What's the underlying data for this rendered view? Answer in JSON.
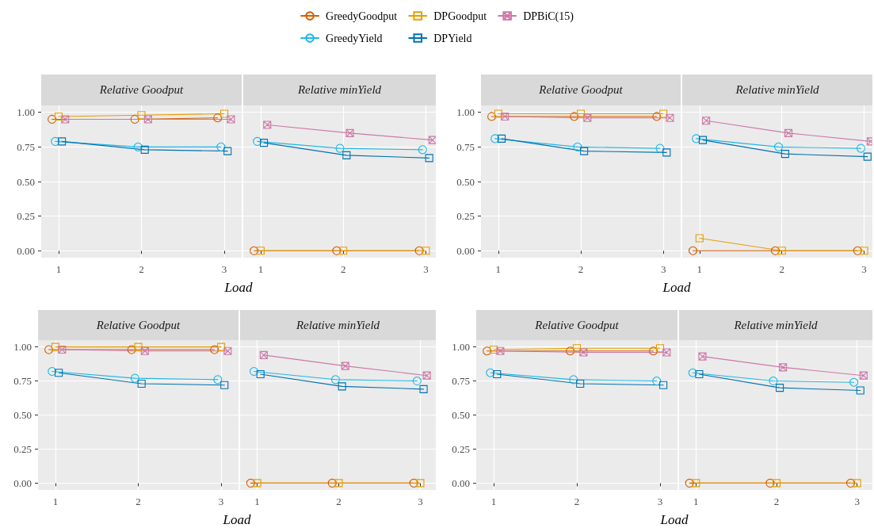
{
  "chart_data": [
    {
      "type": "line",
      "title": "Relative Goodput",
      "xlabel": "Load",
      "legend": "top",
      "grid": true,
      "xlim": [
        0.79,
        3.21
      ],
      "xticks": [
        1,
        2,
        3
      ],
      "ylim": [
        -0.05,
        1.05
      ],
      "yticks": [
        {
          "value": 0,
          "label": "0.00"
        },
        {
          "value": 0.25,
          "label": "0.25"
        },
        {
          "value": 0.5,
          "label": "0.50"
        },
        {
          "value": 0.75,
          "label": "0.75"
        },
        {
          "value": 1,
          "label": "1.00"
        }
      ],
      "series": [
        {
          "name": "GreedyGoodput",
          "color": "#d55e00",
          "marker": "circle",
          "x": [
            0.92,
            1.92,
            2.92
          ],
          "values": [
            0.95,
            0.95,
            0.96
          ]
        },
        {
          "name": "GreedyYield",
          "color": "#1fb8e6",
          "marker": "circle",
          "x": [
            0.96,
            1.96,
            2.96
          ],
          "values": [
            0.79,
            0.75,
            0.75
          ]
        },
        {
          "name": "DPGoodput",
          "color": "#e69f00",
          "marker": "square",
          "x": [
            1,
            2,
            3
          ],
          "values": [
            0.97,
            0.98,
            0.99
          ]
        },
        {
          "name": "DPYield",
          "color": "#0072b2",
          "marker": "square",
          "x": [
            1.04,
            2.04,
            3.04
          ],
          "values": [
            0.79,
            0.73,
            0.72
          ]
        },
        {
          "name": "DPBiC(15)",
          "color": "#cc79a7",
          "marker": "cross",
          "x": [
            1.08,
            2.08,
            3.08
          ],
          "values": [
            0.95,
            0.95,
            0.95
          ]
        }
      ]
    },
    {
      "type": "line",
      "title": "Relative minYield",
      "tick_labels": "x",
      "grid": true,
      "xlim": [
        0.79,
        3.12
      ],
      "xticks": [
        1,
        2,
        3
      ],
      "ylim": [
        -0.05,
        1.05
      ],
      "yticks": [
        0,
        0.25,
        0.5,
        0.75,
        1
      ],
      "series": [
        {
          "color": "#d55e00",
          "marker": "circle",
          "x": [
            0.92,
            1.92,
            2.92
          ],
          "values": [
            0,
            0,
            0
          ]
        },
        {
          "color": "#1fb8e6",
          "marker": "circle",
          "x": [
            0.96,
            1.96,
            2.96
          ],
          "values": [
            0.79,
            0.74,
            0.73
          ]
        },
        {
          "color": "#e69f00",
          "marker": "square",
          "x": [
            1,
            2,
            3
          ],
          "values": [
            0,
            0,
            0
          ]
        },
        {
          "color": "#0072b2",
          "marker": "square",
          "x": [
            1.04,
            2.04,
            3.04
          ],
          "values": [
            0.78,
            0.69,
            0.67
          ]
        },
        {
          "color": "#cc79a7",
          "marker": "cross",
          "x": [
            1.08,
            2.08,
            3.08
          ],
          "values": [
            0.91,
            0.85,
            0.8
          ]
        }
      ]
    },
    {
      "type": "line",
      "title": "Relative Goodput",
      "xlabel": "Load",
      "grid": true,
      "xlim": [
        0.79,
        3.21
      ],
      "xticks": [
        1,
        2,
        3
      ],
      "ylim": [
        -0.05,
        1.05
      ],
      "yticks": [
        {
          "value": 0,
          "label": "0.00"
        },
        {
          "value": 0.25,
          "label": "0.25"
        },
        {
          "value": 0.5,
          "label": "0.50"
        },
        {
          "value": 0.75,
          "label": "0.75"
        },
        {
          "value": 1,
          "label": "1.00"
        }
      ],
      "series": [
        {
          "color": "#d55e00",
          "marker": "circle",
          "x": [
            0.92,
            1.92,
            2.92
          ],
          "values": [
            0.97,
            0.97,
            0.97
          ]
        },
        {
          "color": "#1fb8e6",
          "marker": "circle",
          "x": [
            0.96,
            1.96,
            2.96
          ],
          "values": [
            0.81,
            0.75,
            0.74
          ]
        },
        {
          "color": "#e69f00",
          "marker": "square",
          "x": [
            1,
            2,
            3
          ],
          "values": [
            0.99,
            0.99,
            0.99
          ]
        },
        {
          "color": "#0072b2",
          "marker": "square",
          "x": [
            1.04,
            2.04,
            3.04
          ],
          "values": [
            0.81,
            0.72,
            0.71
          ]
        },
        {
          "color": "#cc79a7",
          "marker": "cross",
          "x": [
            1.08,
            2.08,
            3.08
          ],
          "values": [
            0.97,
            0.96,
            0.96
          ]
        }
      ]
    },
    {
      "type": "line",
      "title": "Relative minYield",
      "tick_labels": "x",
      "grid": true,
      "xlim": [
        0.79,
        3.1
      ],
      "xticks": [
        1,
        2,
        3
      ],
      "ylim": [
        -0.05,
        1.05
      ],
      "yticks": [
        0,
        0.25,
        0.5,
        0.75,
        1
      ],
      "series": [
        {
          "color": "#d55e00",
          "marker": "circle",
          "x": [
            0.92,
            1.92,
            2.92
          ],
          "values": [
            0,
            0,
            0
          ]
        },
        {
          "color": "#1fb8e6",
          "marker": "circle",
          "x": [
            0.96,
            1.96,
            2.96
          ],
          "values": [
            0.81,
            0.75,
            0.74
          ]
        },
        {
          "color": "#e69f00",
          "marker": "square",
          "x": [
            1,
            2,
            3
          ],
          "values": [
            0.09,
            0,
            0
          ]
        },
        {
          "color": "#0072b2",
          "marker": "square",
          "x": [
            1.04,
            2.04,
            3.04
          ],
          "values": [
            0.8,
            0.7,
            0.68
          ]
        },
        {
          "color": "#cc79a7",
          "marker": "cross",
          "x": [
            1.08,
            2.08,
            3.08
          ],
          "values": [
            0.94,
            0.85,
            0.79
          ]
        }
      ]
    },
    {
      "type": "line",
      "title": "Relative Goodput",
      "xlabel": "Load",
      "grid": true,
      "xlim": [
        0.79,
        3.21
      ],
      "xticks": [
        1,
        2,
        3
      ],
      "ylim": [
        -0.05,
        1.05
      ],
      "yticks": [
        {
          "value": 0,
          "label": "0.00"
        },
        {
          "value": 0.25,
          "label": "0.25"
        },
        {
          "value": 0.5,
          "label": "0.50"
        },
        {
          "value": 0.75,
          "label": "0.75"
        },
        {
          "value": 1,
          "label": "1.00"
        }
      ],
      "series": [
        {
          "color": "#d55e00",
          "marker": "circle",
          "x": [
            0.92,
            1.92,
            2.92
          ],
          "values": [
            0.98,
            0.98,
            0.98
          ]
        },
        {
          "color": "#1fb8e6",
          "marker": "circle",
          "x": [
            0.96,
            1.96,
            2.96
          ],
          "values": [
            0.82,
            0.77,
            0.76
          ]
        },
        {
          "color": "#e69f00",
          "marker": "square",
          "x": [
            1,
            2,
            3
          ],
          "values": [
            1,
            1,
            1
          ]
        },
        {
          "color": "#0072b2",
          "marker": "square",
          "x": [
            1.04,
            2.04,
            3.04
          ],
          "values": [
            0.81,
            0.73,
            0.72
          ]
        },
        {
          "color": "#cc79a7",
          "marker": "cross",
          "x": [
            1.08,
            2.08,
            3.08
          ],
          "values": [
            0.98,
            0.97,
            0.97
          ]
        }
      ]
    },
    {
      "type": "line",
      "title": "Relative minYield",
      "tick_labels": "x",
      "grid": true,
      "xlim": [
        0.79,
        3.19
      ],
      "xticks": [
        1,
        2,
        3
      ],
      "ylim": [
        -0.05,
        1.05
      ],
      "yticks": [
        0,
        0.25,
        0.5,
        0.75,
        1
      ],
      "series": [
        {
          "color": "#d55e00",
          "marker": "circle",
          "x": [
            0.92,
            1.92,
            2.92
          ],
          "values": [
            0,
            0,
            0
          ]
        },
        {
          "color": "#1fb8e6",
          "marker": "circle",
          "x": [
            0.96,
            1.96,
            2.96
          ],
          "values": [
            0.82,
            0.76,
            0.75
          ]
        },
        {
          "color": "#e69f00",
          "marker": "square",
          "x": [
            1,
            2,
            3
          ],
          "values": [
            0,
            0,
            0
          ]
        },
        {
          "color": "#0072b2",
          "marker": "square",
          "x": [
            1.04,
            2.04,
            3.04
          ],
          "values": [
            0.8,
            0.71,
            0.69
          ]
        },
        {
          "color": "#cc79a7",
          "marker": "cross",
          "x": [
            1.08,
            2.08,
            3.08
          ],
          "values": [
            0.94,
            0.86,
            0.79
          ]
        }
      ]
    },
    {
      "type": "line",
      "title": "Relative Goodput",
      "xlabel": "Load",
      "grid": true,
      "xlim": [
        0.79,
        3.21
      ],
      "xticks": [
        1,
        2,
        3
      ],
      "ylim": [
        -0.05,
        1.05
      ],
      "yticks": [
        {
          "value": 0,
          "label": "0.00"
        },
        {
          "value": 0.25,
          "label": "0.25"
        },
        {
          "value": 0.5,
          "label": "0.50"
        },
        {
          "value": 0.75,
          "label": "0.75"
        },
        {
          "value": 1,
          "label": "1.00"
        }
      ],
      "series": [
        {
          "color": "#d55e00",
          "marker": "circle",
          "x": [
            0.92,
            1.92,
            2.92
          ],
          "values": [
            0.97,
            0.97,
            0.97
          ]
        },
        {
          "color": "#1fb8e6",
          "marker": "circle",
          "x": [
            0.96,
            1.96,
            2.96
          ],
          "values": [
            0.81,
            0.76,
            0.75
          ]
        },
        {
          "color": "#e69f00",
          "marker": "square",
          "x": [
            1,
            2,
            3
          ],
          "values": [
            0.98,
            0.99,
            0.99
          ]
        },
        {
          "color": "#0072b2",
          "marker": "square",
          "x": [
            1.04,
            2.04,
            3.04
          ],
          "values": [
            0.8,
            0.73,
            0.72
          ]
        },
        {
          "color": "#cc79a7",
          "marker": "cross",
          "x": [
            1.08,
            2.08,
            3.08
          ],
          "values": [
            0.97,
            0.96,
            0.96
          ]
        }
      ]
    },
    {
      "type": "line",
      "title": "Relative minYield",
      "tick_labels": "x",
      "grid": true,
      "xlim": [
        0.79,
        3.19
      ],
      "xticks": [
        1,
        2,
        3
      ],
      "ylim": [
        -0.05,
        1.05
      ],
      "yticks": [
        0,
        0.25,
        0.5,
        0.75,
        1
      ],
      "series": [
        {
          "color": "#d55e00",
          "marker": "circle",
          "x": [
            0.92,
            1.92,
            2.92
          ],
          "values": [
            0,
            0,
            0
          ]
        },
        {
          "color": "#1fb8e6",
          "marker": "circle",
          "x": [
            0.96,
            1.96,
            2.96
          ],
          "values": [
            0.81,
            0.75,
            0.74
          ]
        },
        {
          "color": "#e69f00",
          "marker": "square",
          "x": [
            1,
            2,
            3
          ],
          "values": [
            0,
            0,
            0
          ]
        },
        {
          "color": "#0072b2",
          "marker": "square",
          "x": [
            1.04,
            2.04,
            3.04
          ],
          "values": [
            0.8,
            0.7,
            0.68
          ]
        },
        {
          "color": "#cc79a7",
          "marker": "cross",
          "x": [
            1.08,
            2.08,
            3.08
          ],
          "values": [
            0.93,
            0.85,
            0.79
          ]
        }
      ]
    }
  ]
}
